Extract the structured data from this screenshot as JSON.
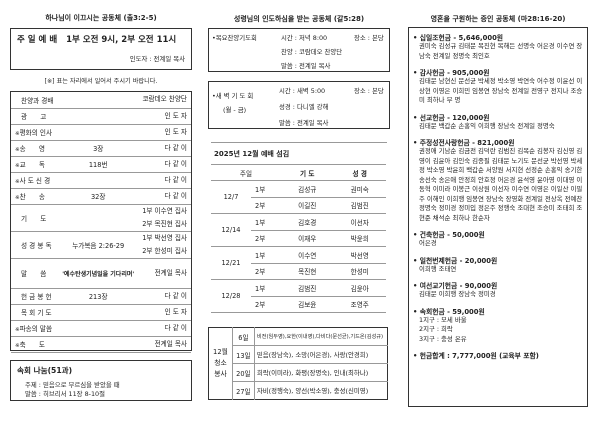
{
  "left": {
    "title": "하나님이 이끄시는 공동체 (출3:2-5)",
    "service": {
      "title": "주 일 예 배",
      "time1": "1부 오전 9시,",
      "time2": "2부 오전 11시",
      "leader": "인도자 : 전계일 목사"
    },
    "note": "[※] 표는 자리에서 일어서 주시기 바랍니다.",
    "rows": [
      {
        "mark": "",
        "name": "찬양과 경배",
        "mid": "",
        "right": "코람데오 찬양단"
      },
      {
        "mark": "",
        "name": "광　　고",
        "mid": "",
        "right": "인 도 자"
      },
      {
        "mark": "※",
        "name": "평화의 인사",
        "mid": "",
        "right": "인 도 자"
      },
      {
        "mark": "※",
        "name": "송　　영",
        "mid": "3장",
        "right": "다 같 이"
      },
      {
        "mark": "※",
        "name": "교　　독",
        "mid": "118번",
        "right": "다 같 이"
      },
      {
        "mark": "※",
        "name": "사 도 신 경",
        "mid": "",
        "right": "다 같 이"
      },
      {
        "mark": "※",
        "name": "찬　　송",
        "mid": "32장",
        "right": "다 같 이"
      },
      {
        "mark": "",
        "name": "기　　도",
        "mid": "",
        "right": "1부 이수연 집사",
        "right2": "2부 목진현 집사"
      },
      {
        "mark": "",
        "name": "성 경 봉 독",
        "mid": "누가복음 2:26-29",
        "right": "1부 박선영 집사",
        "right2": "2부 한성미 집사"
      },
      {
        "mark": "",
        "name": "말　　씀",
        "mid": "'예수탄생기념일을 기다리며'",
        "right": "전계일 목사"
      },
      {
        "mark": "",
        "name": "헌 금 봉 헌",
        "mid": "213장",
        "right": "다 같 이"
      },
      {
        "mark": "",
        "name": "목 회 기 도",
        "mid": "",
        "right": "인 도 자"
      },
      {
        "mark": "※",
        "name": "파송의 말씀",
        "mid": "",
        "right": "다 같 이"
      },
      {
        "mark": "※",
        "name": "축　　도",
        "mid": "",
        "right": "전계일 목사"
      }
    ],
    "cell": {
      "title": "속회 나눔(51과)",
      "theme": "주제 : 믿음으로 부르심을 받았을 때",
      "word": "말씀 : 히브리서 11장 8-10절"
    }
  },
  "mid": {
    "title": "성령님의 인도하심을 받는 공동체 (갈5:28)",
    "thu": {
      "name": "•목요찬양기도회",
      "time": "시간 : 저녁 8:00",
      "place": "장소 : 본당",
      "praise": "찬양 : 코람데오 찬양단",
      "word": "말씀 : 전계일 목사"
    },
    "dawn": {
      "name": "•새 벽 기 도 회",
      "days": "(월 - 금)",
      "time": "시간 : 새벽 5:00",
      "place": "장소 : 본당",
      "bible": "성경 : 다니엘 강해",
      "word": "말씀 : 전계일 목사"
    },
    "serve_title": "2025년 12월  예배 섬김",
    "serve_head": [
      "주일",
      "기 도",
      "성 경"
    ],
    "serve": [
      {
        "date": "12/7",
        "rows": [
          [
            "1부",
            "김성규",
            "권미숙"
          ],
          [
            "2부",
            "이길진",
            "김범진"
          ]
        ]
      },
      {
        "date": "12/14",
        "rows": [
          [
            "1부",
            "김호경",
            "이선자"
          ],
          [
            "2부",
            "이재우",
            "박윤희"
          ]
        ]
      },
      {
        "date": "12/21",
        "rows": [
          [
            "1부",
            "이수연",
            "박선영"
          ],
          [
            "2부",
            "목진현",
            "한성미"
          ]
        ]
      },
      {
        "date": "12/28",
        "rows": [
          [
            "1부",
            "김범진",
            "김윤아"
          ],
          [
            "2부",
            "김보윤",
            "조영주"
          ]
        ]
      }
    ],
    "clean": {
      "label": [
        "12월",
        "청소",
        "봉사"
      ],
      "rows": [
        [
          "6일",
          "비전(임두영),요한(이내영),다비다(문선균),기드온(김성규)"
        ],
        [
          "13일",
          "믿음(장남숙), 소망(어은경), 사랑(안경희)"
        ],
        [
          "20일",
          "희락(이미라), 화평(장명숙), 인내(최하나)"
        ],
        [
          "27일",
          "자비(정행숙), 양선(박소영), 충성(신미영)"
        ]
      ]
    }
  },
  "right": {
    "title": "영혼을 구원하는 증인 공동체 (마28:16-20)",
    "sections": [
      {
        "h": "십일조헌금 - 5,646,000원",
        "n": "권미숙 김성규 김태문 목진현 목해든 선명숙 어은경 이수연 장남숙 전계일 정명숙 최인호"
      },
      {
        "h": "감사헌금 - 905,000원",
        "n": "김태문 남현신 문선균 박세정 박소영 박연숙 어수정 이윤선 이상현 이영은 이희민 임봉연 장남숙 전계일 전영구 전지나 조승미 최하나 무 명"
      },
      {
        "h": "선교헌금 - 120,000원",
        "n": "김태문 백갑순 손홍익 이희행 장남숙 전계일 정명숙"
      },
      {
        "h": "주정성전사랑헌금 -  821,000원",
        "n": "권정애 기남순 김금전 김덕란 김범진 김복순 김봉자 김신영 김영이 김윤아 김인숙 김종필 김태문 노기도 문선균 박선영 박세정 박소영 박윤희 백갑순 서양원 서지현 선정순 손홍익 송기한 송선숙 송은애 안정희 안호정 어은경 윤석영 윤아영 이대영 이동혁 이미라 이봉근 이상원 이선자 이수연 이영은 이일산 이필주 이해인 이희행 임봉연 장남숙 장영화 전계일 전상옥 전예찬 정명숙 정미경 정미입 정은주 정행숙 조대현 조승미 조태희 조현준 채석순 최하나 한순자"
      },
      {
        "h": "건축헌금 - 50,000원",
        "n": "어은경"
      },
      {
        "h": "일천번제헌금 - 20,000원",
        "n": "이희행 조태연"
      },
      {
        "h": "여선교기헌금 - 90,000원",
        "n": "김태문 이희행 장남숙 정미경"
      },
      {
        "h": "속회헌금 - 59,000원",
        "n": "1지구 : 모세 바울\n2지구 : 희락\n3지구 : 충성 온유"
      },
      {
        "h": "헌금합계 : 7,777,000원 (교육부 포함)",
        "n": ""
      }
    ]
  }
}
